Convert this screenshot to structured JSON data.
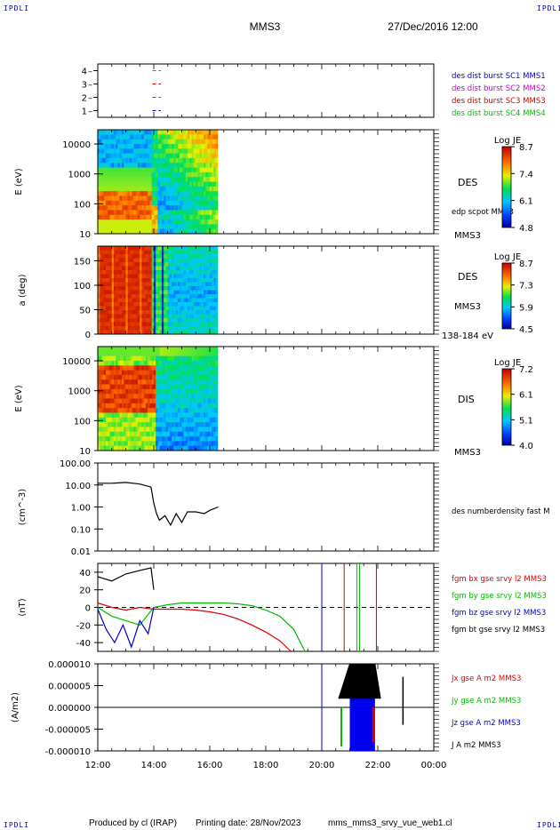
{
  "header": {
    "mission": "MMS3",
    "datetime": "27/Dec/2016 12:00",
    "corner_label": "IPDLI"
  },
  "footer": {
    "produced_by": "Produced by cl (IRAP)",
    "printing_date": "Printing date: 28/Nov/2023",
    "file_name": "mms_mms3_srvy_vue_web1.cl"
  },
  "chart_data": [
    {
      "type": "scatter",
      "panel": "burst-availability",
      "yticks": [
        "1",
        "2",
        "3",
        "4"
      ],
      "ylim": [
        0.5,
        4.5
      ],
      "legend": [
        {
          "label": "des dist burst SC1 MMS1",
          "color": "#0000cc"
        },
        {
          "label": "des dist burst SC2 MMS2",
          "color": "#cc00cc"
        },
        {
          "label": "des dist burst SC3 MMS3",
          "color": "#cc0000"
        },
        {
          "label": "des dist burst SC4 MMS4",
          "color": "#00bb00"
        }
      ],
      "segments": [
        {
          "level": 4,
          "x": [
            13.95,
            14.25
          ],
          "color": "#00bb00"
        },
        {
          "level": 3,
          "x": [
            13.95,
            14.25
          ],
          "color": "#cc0000"
        },
        {
          "level": 2,
          "x": [
            13.95,
            14.25
          ],
          "color": "#cc00cc"
        },
        {
          "level": 1,
          "x": [
            13.95,
            14.25
          ],
          "color": "#0000cc"
        }
      ]
    },
    {
      "type": "heatmap",
      "panel": "des-energy-spectrogram",
      "ylabel": "E (eV)",
      "yscale": "log",
      "ylim": [
        10,
        30000
      ],
      "yticks": [
        "10",
        "100",
        "1000",
        "10000"
      ],
      "right_label": "DES",
      "secondary_label": "edp scpot MMS3",
      "spacecraft": "MMS3",
      "colorbar": {
        "title": "Log JE",
        "ticks": [
          "8.7",
          "7.4",
          "6.1",
          "4.8"
        ],
        "range": [
          4.8,
          8.7
        ]
      }
    },
    {
      "type": "heatmap",
      "panel": "des-pitch-angle",
      "ylabel": "a (deg)",
      "ylim": [
        0,
        180
      ],
      "yticks": [
        "0",
        "50",
        "100",
        "150"
      ],
      "right_label": "DES",
      "spacecraft": "MMS3",
      "energy_range": "138-184 eV",
      "colorbar": {
        "title": "Log JE",
        "ticks": [
          "8.7",
          "7.3",
          "5.9",
          "4.5"
        ],
        "range": [
          4.5,
          8.7
        ]
      }
    },
    {
      "type": "heatmap",
      "panel": "dis-energy-spectrogram",
      "ylabel": "E (eV)",
      "yscale": "log",
      "ylim": [
        10,
        30000
      ],
      "yticks": [
        "10",
        "100",
        "1000",
        "10000"
      ],
      "right_label": "DIS",
      "spacecraft": "MMS3",
      "colorbar": {
        "title": "Log JE",
        "ticks": [
          "7.2",
          "6.1",
          "5.1",
          "4.0"
        ],
        "range": [
          4.0,
          7.2
        ]
      }
    },
    {
      "type": "line",
      "panel": "density",
      "ylabel": "(cm^-3)",
      "yscale": "log",
      "ylim": [
        0.01,
        100
      ],
      "yticks": [
        "0.01",
        "0.10",
        "1.00",
        "10.00",
        "100.00"
      ],
      "series": [
        {
          "name": "des numberdensity fast M",
          "color": "#000000",
          "x": [
            12.0,
            12.5,
            13.0,
            13.5,
            13.9,
            14.0,
            14.1,
            14.2,
            14.4,
            14.6,
            14.8,
            15.0,
            15.2,
            15.5,
            15.8,
            16.0,
            16.3
          ],
          "y": [
            12,
            12,
            13,
            11,
            8,
            1.5,
            0.5,
            0.25,
            0.4,
            0.15,
            0.5,
            0.2,
            0.6,
            0.6,
            0.5,
            0.7,
            1.0
          ]
        }
      ]
    },
    {
      "type": "line",
      "panel": "magnetic-field",
      "ylabel": "(nT)",
      "ylim": [
        -50,
        50
      ],
      "yticks": [
        "-40",
        "-20",
        "0",
        "20",
        "40"
      ],
      "series": [
        {
          "name": "fgm bx gse srvy l2 MMS3",
          "color": "#dd0000",
          "x": [
            12.0,
            12.5,
            13.0,
            13.5,
            14.0,
            14.5,
            15.0,
            15.5,
            16.0,
            16.5,
            17.0,
            17.5,
            18.0,
            18.5,
            18.9
          ],
          "y": [
            5,
            0,
            -3,
            0,
            -2,
            -2,
            -2,
            -3,
            -5,
            -8,
            -13,
            -20,
            -28,
            -38,
            -50
          ]
        },
        {
          "name": "fgm by gse srvy l2 MMS3",
          "color": "#00bb00",
          "x": [
            12.0,
            12.5,
            13.0,
            13.5,
            14.0,
            14.5,
            15.0,
            15.5,
            16.0,
            16.5,
            17.0,
            17.5,
            18.0,
            18.5,
            19.0,
            19.4
          ],
          "y": [
            0,
            -10,
            -15,
            -20,
            0,
            3,
            5,
            5,
            5,
            5,
            4,
            2,
            -3,
            -10,
            -25,
            -50
          ]
        },
        {
          "name": "fgm bz gse srvy l2 MMS3",
          "color": "#0000cc",
          "x": [
            12.0,
            12.3,
            12.6,
            12.9,
            13.2,
            13.5,
            13.8,
            14.0
          ],
          "y": [
            -2,
            -25,
            -40,
            -20,
            -45,
            -15,
            -30,
            0
          ]
        },
        {
          "name": "fgm bt gse srvy l2 MMS3",
          "color": "#000000",
          "x": [
            12.0,
            12.5,
            13.0,
            13.5,
            13.9,
            14.0
          ],
          "y": [
            35,
            30,
            38,
            42,
            45,
            20
          ]
        }
      ]
    },
    {
      "type": "line",
      "panel": "current-density",
      "ylabel": "(A/m2)",
      "ylim": [
        -1e-05,
        1e-05
      ],
      "yticks": [
        "-0.000010",
        "-0.000005",
        "0.000000",
        "0.000005",
        "0.000010"
      ],
      "xlabel": "",
      "xticks": [
        "12:00",
        "14:00",
        "16:00",
        "18:00",
        "20:00",
        "22:00",
        "00:00"
      ],
      "xlim": [
        "12:00",
        "00:00"
      ],
      "series": [
        {
          "name": "Jx gse A m2 MMS3",
          "color": "#dd0000"
        },
        {
          "name": "Jy gse A m2 MMS3",
          "color": "#00bb00"
        },
        {
          "name": "Jz gse A m2 MMS3",
          "color": "#0000cc"
        },
        {
          "name": "J A m2 MMS3",
          "color": "#000000"
        }
      ]
    }
  ]
}
